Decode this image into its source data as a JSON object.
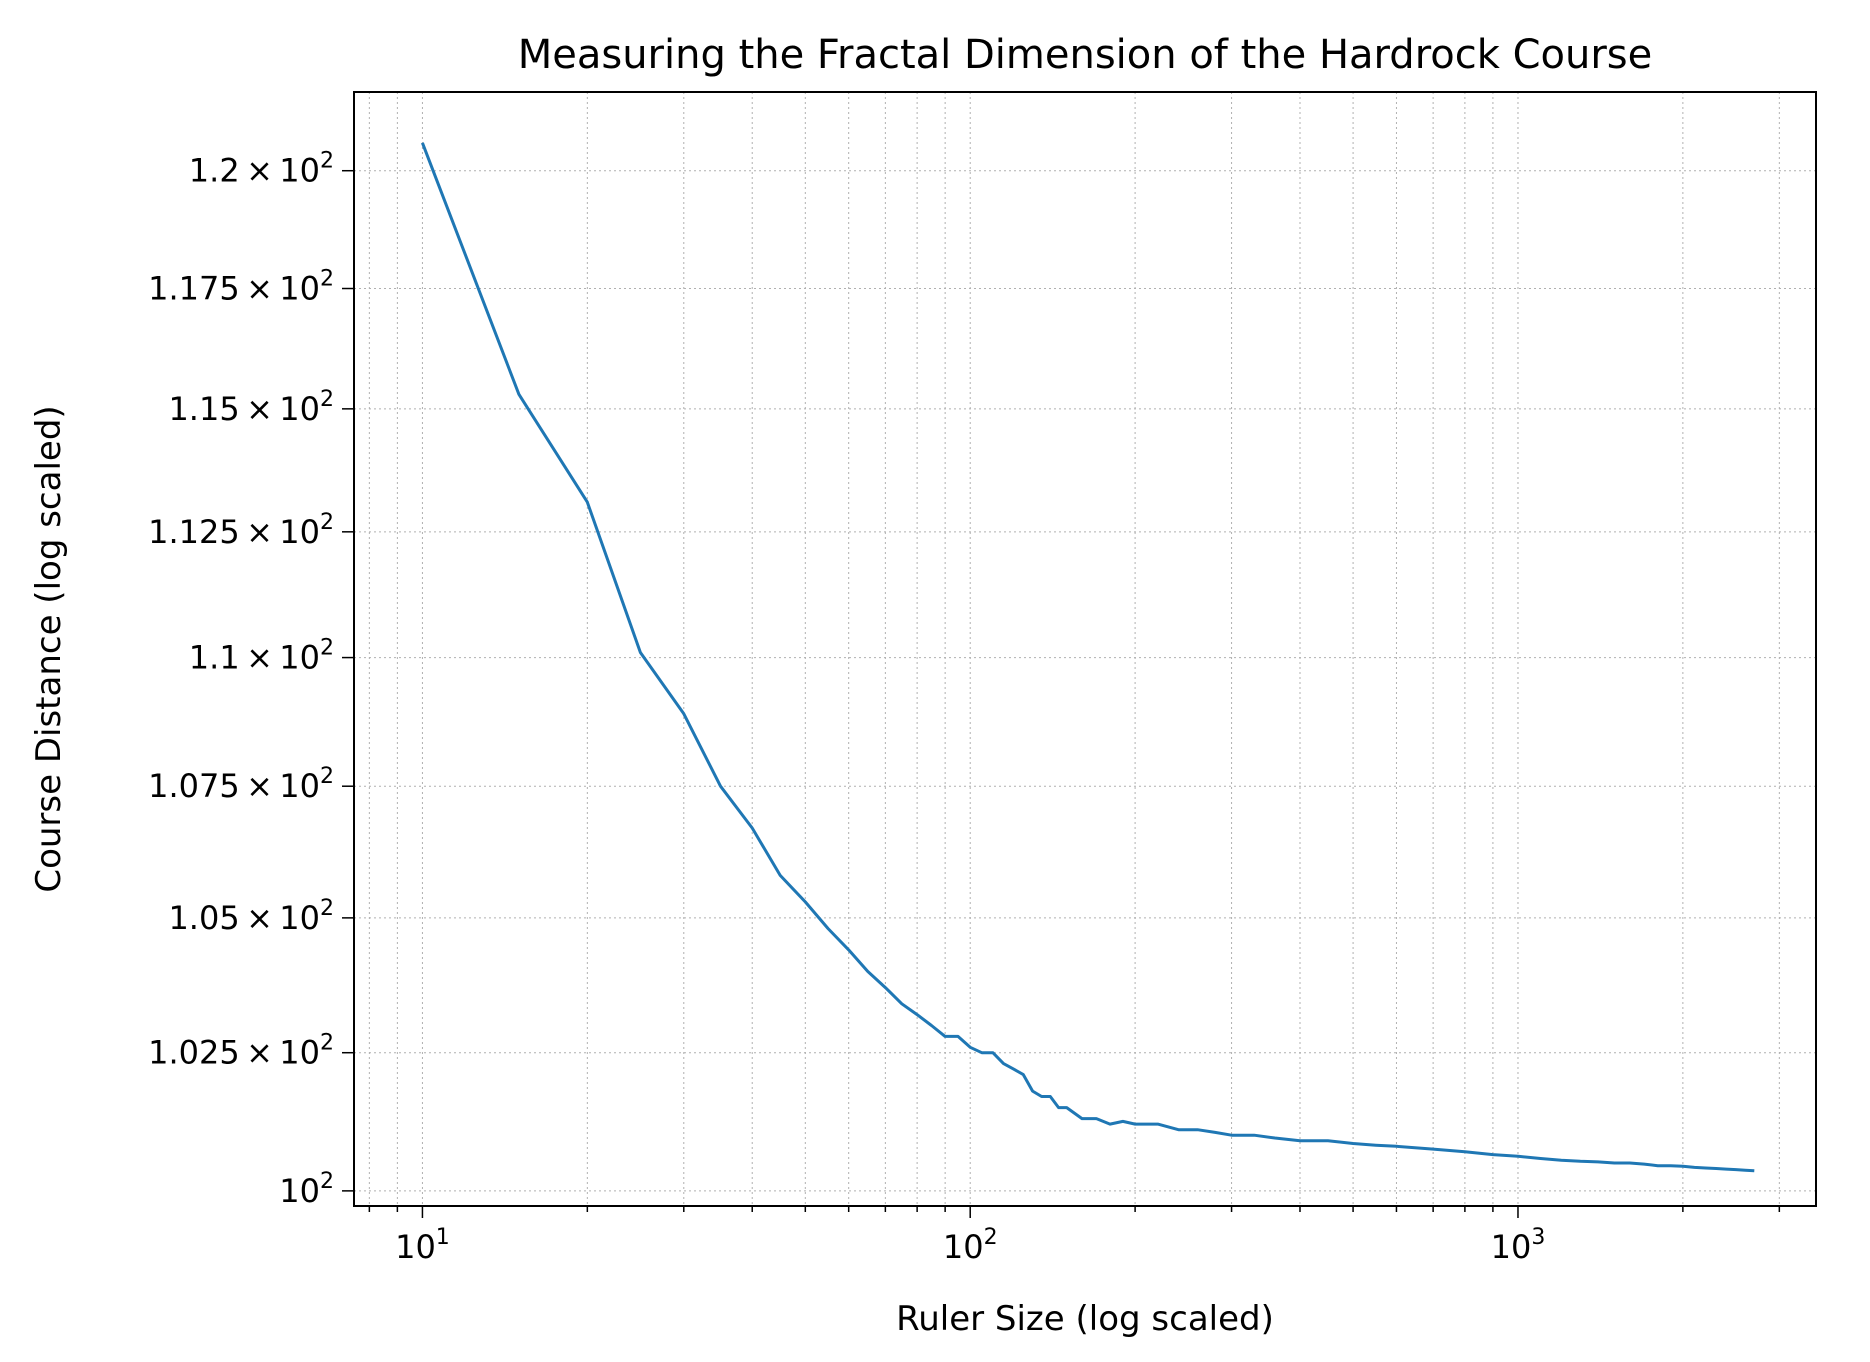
{
  "chart_data": {
    "type": "line",
    "title": "Measuring the Fractal Dimension of the Hardrock Course",
    "xlabel": "Ruler Size (log scaled)",
    "ylabel": "Course Distance (log scaled)",
    "x_scale": "log",
    "y_scale": "log",
    "xlim": [
      7.5,
      3500
    ],
    "ylim": [
      99.73,
      121.7
    ],
    "grid": true,
    "line_color": "#1f77b4",
    "x_ticks": [
      {
        "value": 10,
        "base": "10",
        "exp": "1"
      },
      {
        "value": 100,
        "base": "10",
        "exp": "2"
      },
      {
        "value": 1000,
        "base": "10",
        "exp": "3"
      }
    ],
    "y_ticks": [
      {
        "value": 100,
        "mant": "",
        "base": "10",
        "exp": "2"
      },
      {
        "value": 102.5,
        "mant": "1.025",
        "base": "10",
        "exp": "2"
      },
      {
        "value": 105,
        "mant": "1.05",
        "base": "10",
        "exp": "2"
      },
      {
        "value": 107.5,
        "mant": "1.075",
        "base": "10",
        "exp": "2"
      },
      {
        "value": 110,
        "mant": "1.1",
        "base": "10",
        "exp": "2"
      },
      {
        "value": 112.5,
        "mant": "1.125",
        "base": "10",
        "exp": "2"
      },
      {
        "value": 115,
        "mant": "1.15",
        "base": "10",
        "exp": "2"
      },
      {
        "value": 117.5,
        "mant": "1.175",
        "base": "10",
        "exp": "2"
      },
      {
        "value": 120,
        "mant": "1.2",
        "base": "10",
        "exp": "2"
      }
    ],
    "series": [
      {
        "x": [
          10,
          15,
          20,
          25,
          30,
          35,
          40,
          45,
          50,
          55,
          60,
          65,
          70,
          75,
          80,
          85,
          90,
          95,
          100,
          105,
          110,
          115,
          120,
          125,
          130,
          135,
          140,
          145,
          150,
          160,
          170,
          180,
          190,
          200,
          220,
          240,
          260,
          280,
          300,
          330,
          360,
          400,
          450,
          500,
          550,
          600,
          700,
          800,
          900,
          1000,
          1100,
          1200,
          1300,
          1400,
          1500,
          1600,
          1700,
          1800,
          1900,
          2000,
          2100,
          2200,
          2300,
          2400,
          2500,
          2600,
          2700
        ],
        "y": [
          120.6,
          115.3,
          113.1,
          110.1,
          108.9,
          107.5,
          106.7,
          105.8,
          105.3,
          104.8,
          104.4,
          104.0,
          103.7,
          103.4,
          103.2,
          103.0,
          102.8,
          102.8,
          102.6,
          102.5,
          102.5,
          102.3,
          102.2,
          102.1,
          101.8,
          101.7,
          101.7,
          101.5,
          101.5,
          101.3,
          101.3,
          101.2,
          101.25,
          101.2,
          101.2,
          101.1,
          101.1,
          101.05,
          101.0,
          101.0,
          100.95,
          100.9,
          100.9,
          100.85,
          100.82,
          100.8,
          100.75,
          100.7,
          100.65,
          100.62,
          100.58,
          100.55,
          100.53,
          100.52,
          100.5,
          100.5,
          100.48,
          100.45,
          100.45,
          100.44,
          100.42,
          100.41,
          100.4,
          100.39,
          100.38,
          100.37,
          100.36
        ]
      }
    ]
  }
}
